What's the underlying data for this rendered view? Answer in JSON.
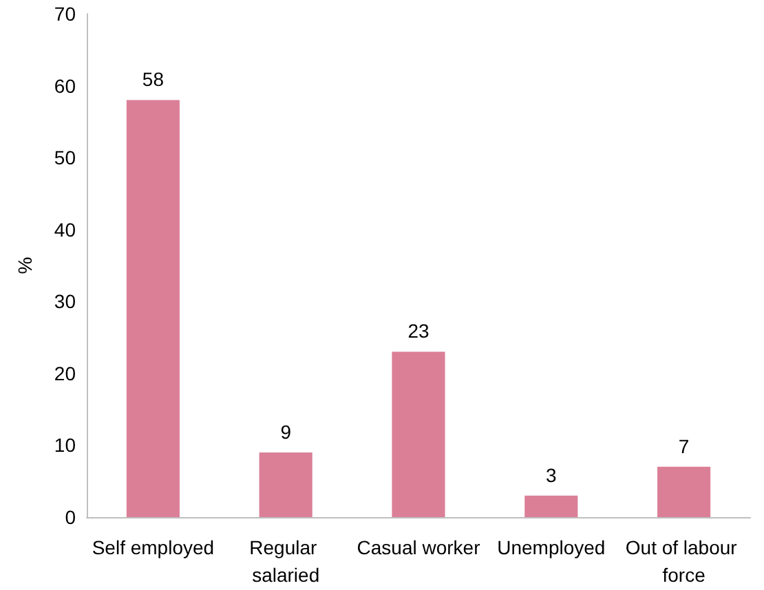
{
  "chart_data": {
    "type": "bar",
    "ylabel": "%",
    "categories": [
      "Self employed",
      "Regular salaried",
      "Casual worker",
      "Unemployed",
      "Out of labour force"
    ],
    "values": [
      58,
      9,
      23,
      3,
      7
    ],
    "color": "#db7f97",
    "ylim": [
      0,
      70
    ],
    "yticks": [
      0,
      10,
      20,
      30,
      40,
      50,
      60,
      70
    ],
    "grid": false,
    "data_labels": true
  }
}
